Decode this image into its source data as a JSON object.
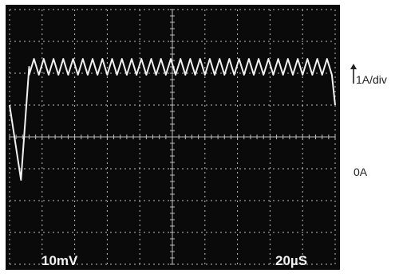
{
  "chart_data": {
    "type": "line",
    "title": "",
    "xlabel": "",
    "ylabel": "",
    "grid": true,
    "divisions": {
      "x": 10,
      "y": 8
    },
    "xlim": [
      0,
      10
    ],
    "ylim": [
      -4,
      4
    ],
    "readouts": {
      "vertical": "10mV",
      "horizontal": "20µS"
    },
    "side_labels": {
      "scale": "1A/div",
      "zero": "0A"
    },
    "colors": {
      "background": "#0a0a0a",
      "trace": "#f2f2f2",
      "grid": "#bdbdbd"
    },
    "series": [
      {
        "x": [
          0.0,
          0.35,
          0.6,
          9.9,
          10.0
        ],
        "y": [
          1.0,
          -1.35,
          2.2,
          2.2,
          1.0
        ]
      }
    ],
    "ripple": {
      "x_start": 0.6,
      "x_end": 9.9,
      "level": 2.2,
      "peak_to_peak": 0.5,
      "cycles": 31
    }
  }
}
